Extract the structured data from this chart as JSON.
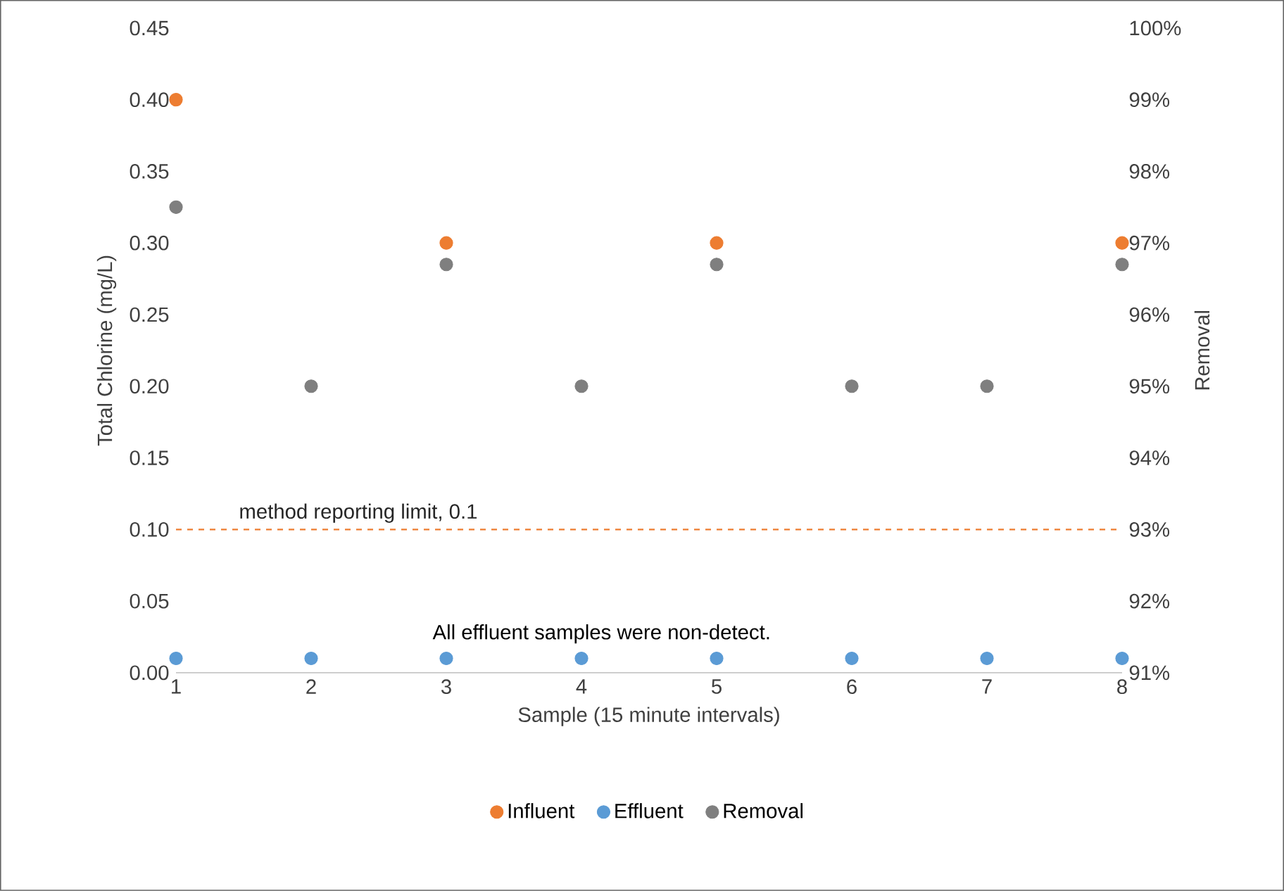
{
  "chart_data": {
    "type": "scatter",
    "xlabel": "Sample (15 minute intervals)",
    "ylabel": "Total Chlorine (mg/L)",
    "y2label": "Removal",
    "x": [
      1,
      2,
      3,
      4,
      5,
      6,
      7,
      8
    ],
    "xlim": [
      1,
      8
    ],
    "xticks": [
      1,
      2,
      3,
      4,
      5,
      6,
      7,
      8
    ],
    "ylim": [
      0,
      0.45
    ],
    "yticks": [
      {
        "value": 0,
        "label": "0.00"
      },
      {
        "value": 0.05,
        "label": "0.05"
      },
      {
        "value": 0.1,
        "label": "0.10"
      },
      {
        "value": 0.15,
        "label": "0.15"
      },
      {
        "value": 0.2,
        "label": "0.20"
      },
      {
        "value": 0.25,
        "label": "0.25"
      },
      {
        "value": 0.3,
        "label": "0.30"
      },
      {
        "value": 0.35,
        "label": "0.35"
      },
      {
        "value": 0.4,
        "label": "0.40"
      },
      {
        "value": 0.45,
        "label": "0.45"
      }
    ],
    "y2lim": [
      91,
      100
    ],
    "y2ticks": [
      {
        "value": 91,
        "label": "91%"
      },
      {
        "value": 92,
        "label": "92%"
      },
      {
        "value": 93,
        "label": "93%"
      },
      {
        "value": 94,
        "label": "94%"
      },
      {
        "value": 95,
        "label": "95%"
      },
      {
        "value": 96,
        "label": "96%"
      },
      {
        "value": 97,
        "label": "97%"
      },
      {
        "value": 98,
        "label": "98%"
      },
      {
        "value": 99,
        "label": "99%"
      },
      {
        "value": 100,
        "label": "100%"
      }
    ],
    "series": [
      {
        "name": "Influent",
        "color": "#ed7d31",
        "values": [
          0.4,
          null,
          0.3,
          null,
          0.3,
          null,
          null,
          0.3
        ]
      },
      {
        "name": "Effluent",
        "color": "#5b9bd5",
        "values": [
          0.01,
          0.01,
          0.01,
          0.01,
          0.01,
          0.01,
          0.01,
          0.01
        ]
      },
      {
        "name": "Removal",
        "color": "#7f7f7f",
        "axis": "y2",
        "values": [
          97.5,
          95,
          96.7,
          95,
          96.7,
          95,
          95,
          96.7
        ]
      }
    ],
    "ref_lines": [
      {
        "axis": "y",
        "value": 0.1,
        "label": "method reporting limit, 0.1",
        "color": "#ed7d31",
        "line_style": "dashed"
      }
    ],
    "annotations": [
      "All effluent samples were non-detect."
    ],
    "legend": "bottom"
  }
}
